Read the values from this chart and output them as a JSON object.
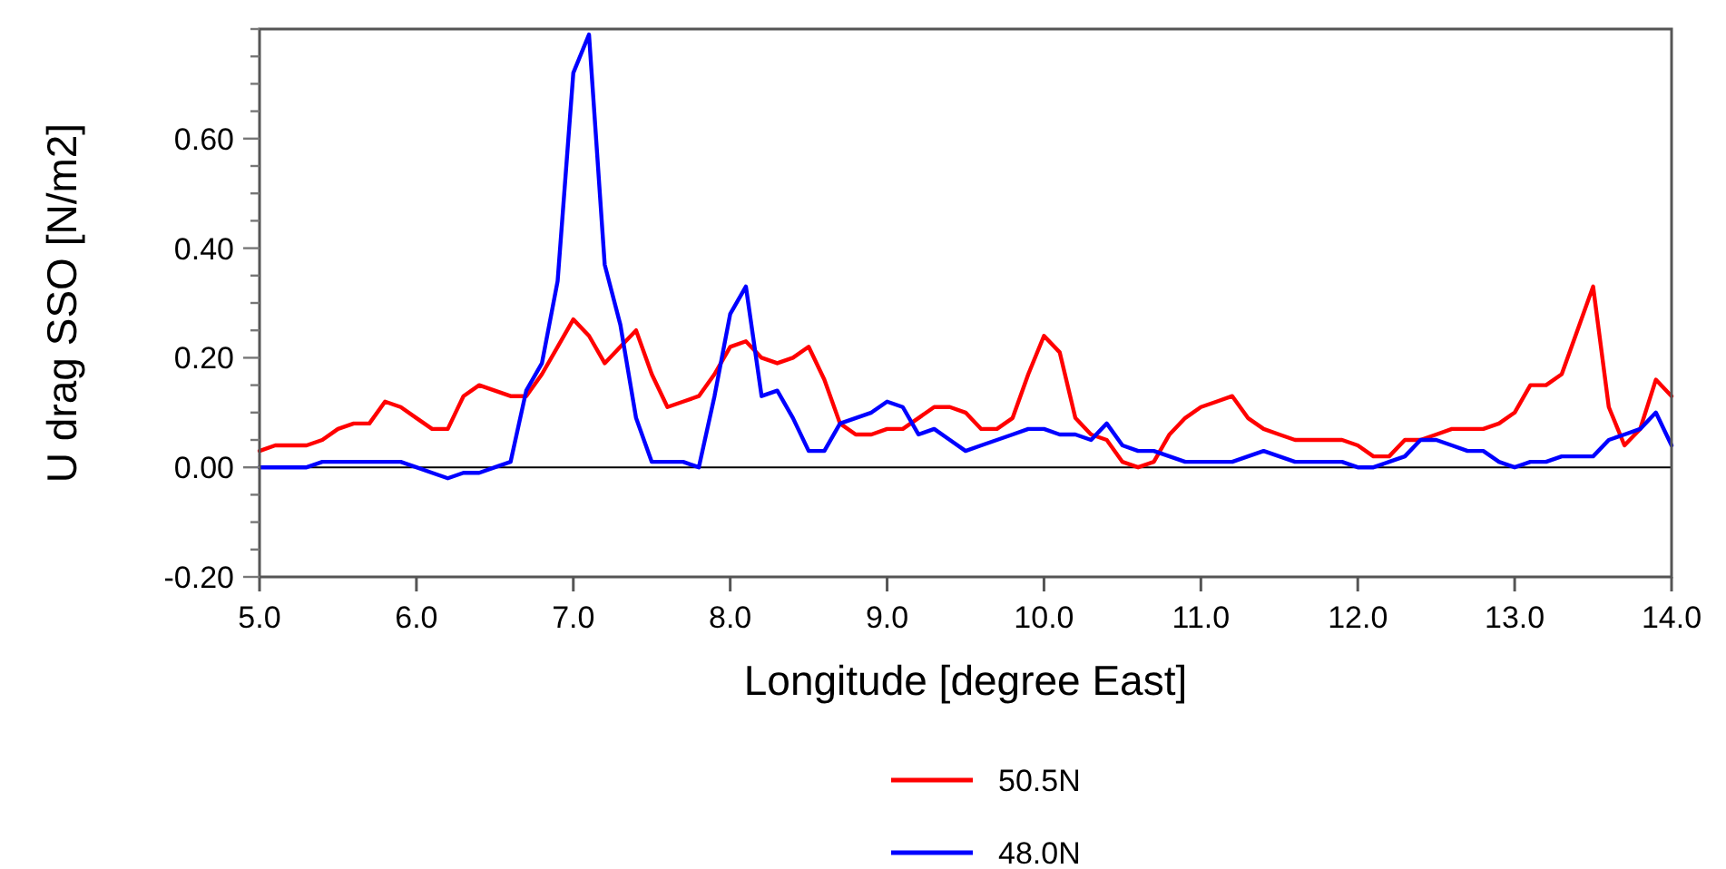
{
  "chart_data": {
    "type": "line",
    "xlabel": "Longitude [degree East]",
    "ylabel": "U drag SSO  [N/m2]",
    "x": [
      5.0,
      5.1,
      5.2,
      5.3,
      5.4,
      5.5,
      5.6,
      5.7,
      5.8,
      5.9,
      6.0,
      6.1,
      6.2,
      6.3,
      6.4,
      6.5,
      6.6,
      6.7,
      6.8,
      6.9,
      7.0,
      7.1,
      7.2,
      7.3,
      7.4,
      7.5,
      7.6,
      7.7,
      7.8,
      7.9,
      8.0,
      8.1,
      8.2,
      8.3,
      8.4,
      8.5,
      8.6,
      8.7,
      8.8,
      8.9,
      9.0,
      9.1,
      9.2,
      9.3,
      9.4,
      9.5,
      9.6,
      9.7,
      9.8,
      9.9,
      10.0,
      10.1,
      10.2,
      10.3,
      10.4,
      10.5,
      10.6,
      10.7,
      10.8,
      10.9,
      11.0,
      11.1,
      11.2,
      11.3,
      11.4,
      11.5,
      11.6,
      11.7,
      11.8,
      11.9,
      12.0,
      12.1,
      12.2,
      12.3,
      12.4,
      12.5,
      12.6,
      12.7,
      12.8,
      12.9,
      13.0,
      13.1,
      13.2,
      13.3,
      13.4,
      13.5,
      13.6,
      13.7,
      13.8,
      13.9,
      14.0
    ],
    "series": [
      {
        "name": "50.5N",
        "color": "#ff0000",
        "values": [
          0.03,
          0.04,
          0.04,
          0.04,
          0.05,
          0.07,
          0.08,
          0.08,
          0.12,
          0.11,
          0.09,
          0.07,
          0.07,
          0.13,
          0.15,
          0.14,
          0.13,
          0.13,
          0.17,
          0.22,
          0.27,
          0.24,
          0.19,
          0.22,
          0.25,
          0.17,
          0.11,
          0.12,
          0.13,
          0.17,
          0.22,
          0.23,
          0.2,
          0.19,
          0.2,
          0.22,
          0.16,
          0.08,
          0.06,
          0.06,
          0.07,
          0.07,
          0.09,
          0.11,
          0.11,
          0.1,
          0.07,
          0.07,
          0.09,
          0.17,
          0.24,
          0.21,
          0.09,
          0.06,
          0.05,
          0.01,
          0.0,
          0.01,
          0.06,
          0.09,
          0.11,
          0.12,
          0.13,
          0.09,
          0.07,
          0.06,
          0.05,
          0.05,
          0.05,
          0.05,
          0.04,
          0.02,
          0.02,
          0.05,
          0.05,
          0.06,
          0.07,
          0.07,
          0.07,
          0.08,
          0.1,
          0.15,
          0.15,
          0.17,
          0.25,
          0.33,
          0.11,
          0.04,
          0.07,
          0.16,
          0.13
        ]
      },
      {
        "name": "48.0N",
        "color": "#0000ff",
        "values": [
          0.0,
          0.0,
          0.0,
          0.0,
          0.01,
          0.01,
          0.01,
          0.01,
          0.01,
          0.01,
          0.0,
          -0.01,
          -0.02,
          -0.01,
          -0.01,
          0.0,
          0.01,
          0.14,
          0.19,
          0.34,
          0.72,
          0.79,
          0.37,
          0.26,
          0.09,
          0.01,
          0.01,
          0.01,
          0.0,
          0.13,
          0.28,
          0.33,
          0.13,
          0.14,
          0.09,
          0.03,
          0.03,
          0.08,
          0.09,
          0.1,
          0.12,
          0.11,
          0.06,
          0.07,
          0.05,
          0.03,
          0.04,
          0.05,
          0.06,
          0.07,
          0.07,
          0.06,
          0.06,
          0.05,
          0.08,
          0.04,
          0.03,
          0.03,
          0.02,
          0.01,
          0.01,
          0.01,
          0.01,
          0.02,
          0.03,
          0.02,
          0.01,
          0.01,
          0.01,
          0.01,
          0.0,
          0.0,
          0.01,
          0.02,
          0.05,
          0.05,
          0.04,
          0.03,
          0.03,
          0.01,
          0.0,
          0.01,
          0.01,
          0.02,
          0.02,
          0.02,
          0.05,
          0.06,
          0.07,
          0.1,
          0.04
        ]
      }
    ],
    "xlim": [
      5.0,
      14.0
    ],
    "xticks": [
      {
        "value": 5,
        "label": "5.0"
      },
      {
        "value": 6,
        "label": "6.0"
      },
      {
        "value": 7,
        "label": "7.0"
      },
      {
        "value": 8,
        "label": "8.0"
      },
      {
        "value": 9,
        "label": "9.0"
      },
      {
        "value": 10,
        "label": "10.0"
      },
      {
        "value": 11,
        "label": "11.0"
      },
      {
        "value": 12,
        "label": "12.0"
      },
      {
        "value": 13,
        "label": "13.0"
      },
      {
        "value": 14,
        "label": "14.0"
      }
    ],
    "ylim": [
      -0.2,
      0.8
    ],
    "yticks": [
      {
        "value": -0.2,
        "label": "-0.20"
      },
      {
        "value": -0.15,
        "label": null
      },
      {
        "value": -0.1,
        "label": null
      },
      {
        "value": -0.05,
        "label": null
      },
      {
        "value": 0,
        "label": "0.00"
      },
      {
        "value": 0.05,
        "label": null
      },
      {
        "value": 0.1,
        "label": null
      },
      {
        "value": 0.15,
        "label": null
      },
      {
        "value": 0.2,
        "label": "0.20"
      },
      {
        "value": 0.25,
        "label": null
      },
      {
        "value": 0.3,
        "label": null
      },
      {
        "value": 0.35,
        "label": null
      },
      {
        "value": 0.4,
        "label": "0.40"
      },
      {
        "value": 0.45,
        "label": null
      },
      {
        "value": 0.5,
        "label": null
      },
      {
        "value": 0.55,
        "label": null
      },
      {
        "value": 0.6,
        "label": "0.60"
      },
      {
        "value": 0.65,
        "label": null
      },
      {
        "value": 0.7,
        "label": null
      },
      {
        "value": 0.75,
        "label": null
      },
      {
        "value": 0.8,
        "label": null
      }
    ],
    "ref_lines": [
      {
        "axis": "y",
        "value": 0,
        "color": "#000000"
      }
    ],
    "legend": "bottom",
    "grid": false,
    "line_style": "solid",
    "marker": "none"
  }
}
